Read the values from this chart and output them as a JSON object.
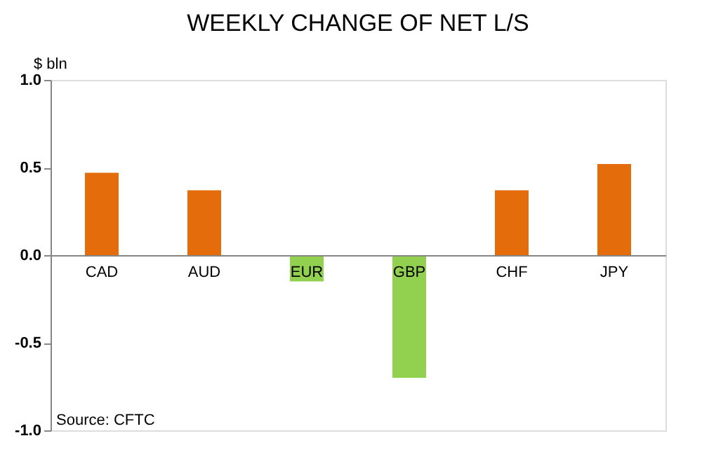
{
  "chart_data": {
    "type": "bar",
    "title": "WEEKLY CHANGE OF NET L/S",
    "ylabel": "$ bln",
    "categories": [
      "CAD",
      "AUD",
      "EUR",
      "GBP",
      "CHF",
      "JPY"
    ],
    "values": [
      0.47,
      0.37,
      -0.15,
      -0.7,
      0.37,
      0.52
    ],
    "colors": [
      "#e46c0a",
      "#e46c0a",
      "#92d050",
      "#92d050",
      "#e46c0a",
      "#e46c0a"
    ],
    "ylim": [
      -1.0,
      1.0
    ],
    "yticks": [
      {
        "value": -1.0,
        "label": "-1.0"
      },
      {
        "value": -0.5,
        "label": "-0.5"
      },
      {
        "value": 0.0,
        "label": "0.0"
      },
      {
        "value": 0.5,
        "label": "0.5"
      },
      {
        "value": 1.0,
        "label": "1.0"
      }
    ],
    "grid": false,
    "annotations": [
      "Source: CFTC"
    ]
  }
}
